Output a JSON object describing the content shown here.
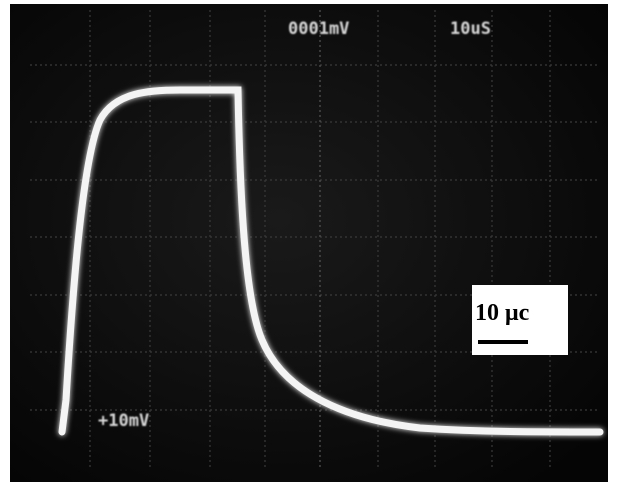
{
  "screen": {
    "readouts": [
      "0001mV",
      "10uS",
      "+10mV"
    ],
    "scale_label": "10 μc"
  }
}
